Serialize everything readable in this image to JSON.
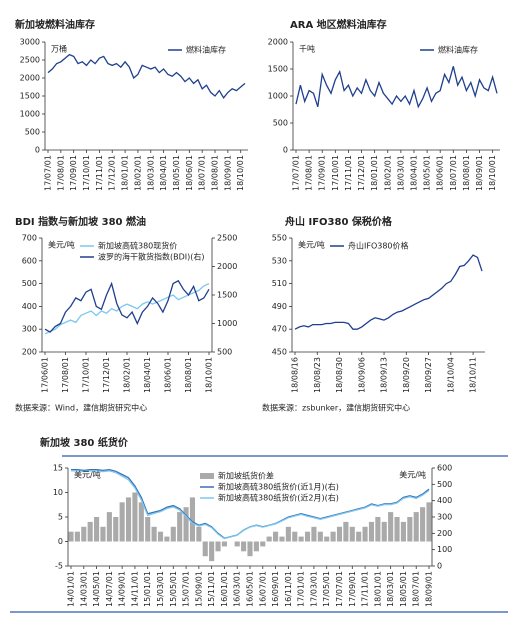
{
  "chart_data": [
    {
      "type": "line",
      "title": "新加坡燃料油库存",
      "y_unit": "万桶",
      "legend": "upper right",
      "ylim": [
        0,
        3000
      ],
      "yticks": [
        0,
        500,
        1000,
        1500,
        2000,
        2500,
        3000
      ],
      "categories": [
        "17/07/01",
        null,
        null,
        "17/08/01",
        null,
        null,
        "17/09/01",
        null,
        null,
        "17/10/01",
        null,
        null,
        "17/11/01",
        null,
        null,
        "17/12/01",
        null,
        null,
        "18/01/01",
        null,
        null,
        "18/02/01",
        null,
        null,
        "18/03/01",
        null,
        null,
        "18/04/01",
        null,
        null,
        "18/05/01",
        null,
        null,
        "18/06/01",
        null,
        null,
        "18/07/01",
        null,
        null,
        "18/08/01",
        null,
        null,
        "18/09/01",
        null,
        null,
        "18/10/01",
        null
      ],
      "series": [
        {
          "name": "燃料油库存",
          "color": "#1f3f8f",
          "values": [
            2150,
            2250,
            2400,
            2450,
            2550,
            2650,
            2600,
            2400,
            2450,
            2350,
            2500,
            2400,
            2550,
            2600,
            2400,
            2350,
            2400,
            2300,
            2450,
            2300,
            2000,
            2100,
            2350,
            2300,
            2250,
            2300,
            2150,
            2250,
            2100,
            2050,
            2150,
            2050,
            1900,
            2000,
            1850,
            1950,
            1700,
            1800,
            1600,
            1500,
            1650,
            1450,
            1600,
            1700,
            1650,
            1750,
            1850
          ]
        }
      ]
    },
    {
      "type": "line",
      "title": "ARA 地区燃料油库存",
      "y_unit": "千吨",
      "legend": "upper right",
      "ylim": [
        0,
        2000
      ],
      "yticks": [
        0,
        500,
        1000,
        1500,
        2000
      ],
      "categories": [
        "17/07/01",
        null,
        null,
        "17/08/01",
        null,
        null,
        "17/09/01",
        null,
        null,
        "17/10/01",
        null,
        null,
        "17/11/01",
        null,
        null,
        "17/12/01",
        null,
        null,
        "18/01/01",
        null,
        null,
        "18/02/01",
        null,
        null,
        "18/03/01",
        null,
        null,
        "18/04/01",
        null,
        null,
        "18/05/01",
        null,
        null,
        "18/06/01",
        null,
        null,
        "18/07/01",
        null,
        null,
        "18/08/01",
        null,
        null,
        "18/09/01",
        null,
        null,
        "18/10/01",
        null
      ],
      "series": [
        {
          "name": "燃料油库存",
          "color": "#1f3f8f",
          "values": [
            850,
            1200,
            900,
            1100,
            1050,
            800,
            1400,
            1200,
            1050,
            1300,
            1450,
            1100,
            1200,
            1000,
            1150,
            1050,
            1300,
            1100,
            1000,
            1250,
            1050,
            950,
            850,
            1000,
            900,
            1000,
            850,
            1100,
            800,
            950,
            1150,
            900,
            1050,
            1100,
            1400,
            1250,
            1550,
            1200,
            1350,
            1100,
            1250,
            1000,
            1300,
            1150,
            1100,
            1350,
            1050
          ]
        }
      ]
    },
    {
      "type": "line",
      "title": "BDI 指数与新加坡 380 燃油",
      "y_unit": "美元/吨",
      "legend": "upper left",
      "source": "数据来源：Wind，建信期货研究中心",
      "ylim": [
        200,
        700
      ],
      "yticks": [
        200,
        300,
        400,
        500,
        600,
        700
      ],
      "y2lim": [
        500,
        2500
      ],
      "y2ticks": [
        500,
        1000,
        1500,
        2000,
        2500
      ],
      "categories": [
        "17/06/01",
        null,
        null,
        null,
        "17/08/01",
        null,
        null,
        null,
        "17/10/01",
        null,
        null,
        null,
        "17/12/01",
        null,
        null,
        null,
        "18/02/01",
        null,
        null,
        null,
        "18/04/01",
        null,
        null,
        null,
        "18/06/01",
        null,
        null,
        null,
        "18/08/01",
        null,
        null,
        null,
        "18/10/01"
      ],
      "series": [
        {
          "name": "新加坡高硫380现货价",
          "color": "#7cc8f0",
          "values": [
            280,
            290,
            300,
            320,
            330,
            340,
            330,
            360,
            370,
            380,
            360,
            380,
            370,
            390,
            380,
            400,
            410,
            400,
            390,
            410,
            420,
            410,
            420,
            430,
            440,
            450,
            430,
            440,
            450,
            460,
            470,
            490,
            500
          ]
        },
        {
          "name": "波罗的海干散货指数(BDI)(右)",
          "color": "#1f3f8f",
          "axis": "y2",
          "values": [
            900,
            850,
            950,
            1000,
            1200,
            1300,
            1450,
            1400,
            1550,
            1600,
            1300,
            1250,
            1500,
            1700,
            1350,
            1150,
            1100,
            1200,
            1000,
            1200,
            1300,
            1450,
            1350,
            1200,
            1400,
            1700,
            1750,
            1600,
            1500,
            1650,
            1400,
            1450,
            1600
          ]
        }
      ]
    },
    {
      "type": "line",
      "title": "舟山 IFO380 保税价格",
      "y_unit": "美元/吨",
      "legend": "upper left",
      "source": "数据来源：zsbunker，建信期货研究中心",
      "ylim": [
        450,
        550
      ],
      "yticks": [
        450,
        470,
        490,
        510,
        530,
        550
      ],
      "categories": [
        "18/08/16",
        null,
        null,
        null,
        null,
        "18/08/23",
        null,
        null,
        null,
        null,
        "18/08/30",
        null,
        null,
        null,
        null,
        "18/09/06",
        null,
        null,
        null,
        null,
        "18/09/13",
        null,
        null,
        null,
        null,
        "18/09/20",
        null,
        null,
        null,
        null,
        "18/09/27",
        null,
        null,
        null,
        null,
        "18/10/04",
        null,
        null,
        null,
        null,
        "18/10/11",
        null,
        null
      ],
      "series": [
        {
          "name": "舟山IFO380价格",
          "color": "#1f3f8f",
          "values": [
            470,
            472,
            473,
            472,
            474,
            474,
            474,
            475,
            475,
            476,
            476,
            476,
            475,
            470,
            470,
            472,
            475,
            478,
            480,
            479,
            478,
            480,
            483,
            485,
            486,
            488,
            490,
            492,
            494,
            496,
            497,
            500,
            503,
            506,
            510,
            512,
            518,
            525,
            526,
            530,
            535,
            533,
            521
          ]
        }
      ]
    },
    {
      "type": "combo",
      "title": "新加坡 380 纸货价",
      "y_unit": "美元/吨",
      "y2_unit": "美元/吨",
      "legend": "upper center",
      "ylim": [
        -5,
        15
      ],
      "yticks": [
        -5,
        0,
        5,
        10,
        15
      ],
      "y2lim": [
        0,
        600
      ],
      "y2ticks": [
        0,
        100,
        200,
        300,
        400,
        500,
        600
      ],
      "categories": [
        "14/01/01",
        null,
        "14/03/01",
        null,
        "14/05/01",
        null,
        "14/07/01",
        null,
        "14/09/01",
        null,
        "14/11/01",
        null,
        "15/01/01",
        null,
        "15/03/01",
        null,
        "15/05/01",
        null,
        "15/07/01",
        null,
        "15/09/01",
        null,
        "15/11/01",
        null,
        "16/01/01",
        null,
        "16/03/01",
        null,
        "16/05/01",
        null,
        "16/07/01",
        null,
        "16/09/01",
        null,
        "16/11/01",
        null,
        "17/01/01",
        null,
        "17/03/01",
        null,
        "17/05/01",
        null,
        "17/07/01",
        null,
        "17/09/01",
        null,
        "17/11/01",
        null,
        "18/01/01",
        null,
        "18/03/01",
        null,
        "18/05/01",
        null,
        "18/07/01",
        null,
        "18/09/01"
      ],
      "series": [
        {
          "name": "新加坡纸货价差",
          "type": "bar",
          "color": "#aaaaaa",
          "values": [
            2,
            2,
            3,
            4,
            5,
            3,
            6,
            5,
            8,
            9,
            10,
            8,
            5,
            3,
            2,
            1,
            3,
            6,
            7,
            9,
            3,
            -3,
            -4,
            -2,
            -1,
            0,
            -1,
            -2,
            -3,
            -2,
            -1,
            1,
            2,
            1,
            3,
            2,
            1,
            2,
            3,
            2,
            1,
            2,
            3,
            4,
            3,
            2,
            3,
            4,
            5,
            4,
            6,
            5,
            4,
            5,
            6,
            7,
            8
          ]
        },
        {
          "name": "新加坡高硫380纸货价(近1月)(右)",
          "type": "line",
          "color": "#3a6fb5",
          "axis": "y2",
          "values": [
            590,
            590,
            585,
            590,
            590,
            585,
            590,
            580,
            560,
            540,
            490,
            420,
            320,
            330,
            340,
            360,
            370,
            350,
            310,
            270,
            250,
            260,
            240,
            200,
            170,
            180,
            190,
            220,
            240,
            250,
            240,
            250,
            260,
            280,
            300,
            310,
            320,
            310,
            300,
            290,
            300,
            310,
            320,
            330,
            340,
            350,
            360,
            380,
            370,
            380,
            380,
            390,
            420,
            430,
            420,
            440,
            470
          ]
        },
        {
          "name": "新加坡高硫380纸货价(近2月)(右)",
          "type": "line",
          "color": "#7cc8f0",
          "axis": "y2",
          "values": [
            582,
            583,
            578,
            582,
            582,
            578,
            582,
            572,
            550,
            528,
            478,
            405,
            310,
            322,
            333,
            352,
            362,
            343,
            303,
            262,
            245,
            255,
            235,
            195,
            168,
            178,
            188,
            218,
            238,
            248,
            238,
            248,
            258,
            276,
            296,
            306,
            316,
            305,
            296,
            286,
            296,
            306,
            316,
            326,
            336,
            346,
            356,
            375,
            366,
            376,
            376,
            386,
            414,
            424,
            414,
            434,
            462
          ]
        }
      ]
    }
  ]
}
